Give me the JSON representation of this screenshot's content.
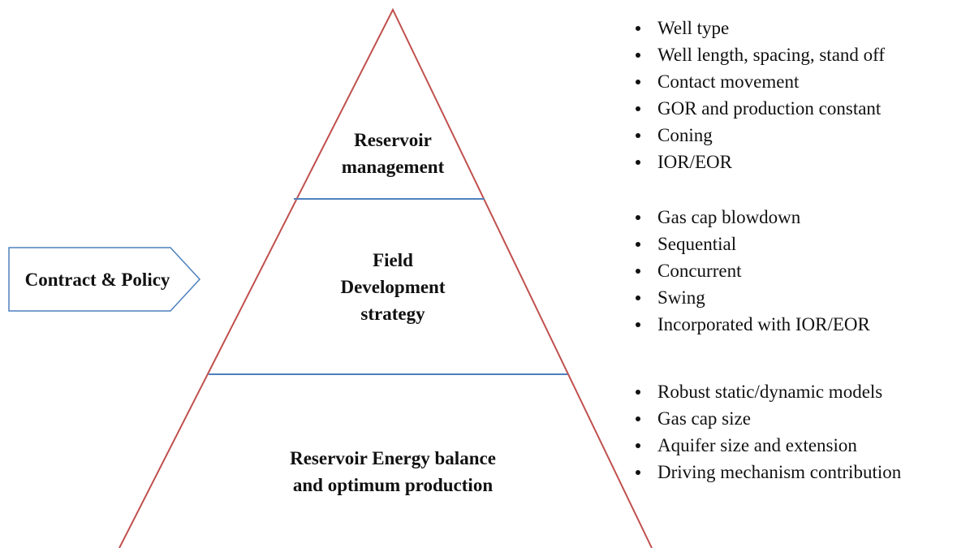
{
  "pyramid": {
    "levels": [
      {
        "label": [
          "Reservoir",
          "management"
        ]
      },
      {
        "label": [
          "Field",
          "Development",
          "strategy"
        ]
      },
      {
        "label": [
          "Reservoir Energy balance",
          "and optimum production"
        ]
      }
    ]
  },
  "arrow": {
    "label": "Contract & Policy"
  },
  "bullets": [
    [
      "Well type",
      "Well length, spacing, stand off",
      "Contact movement",
      "GOR and production constant",
      "Coning",
      "IOR/EOR"
    ],
    [
      "Gas cap blowdown",
      "Sequential",
      "Concurrent",
      "Swing",
      "Incorporated with IOR/EOR"
    ],
    [
      "Robust static/dynamic models",
      "Gas cap size",
      "Aquifer size and extension",
      "Driving mechanism contribution"
    ]
  ]
}
